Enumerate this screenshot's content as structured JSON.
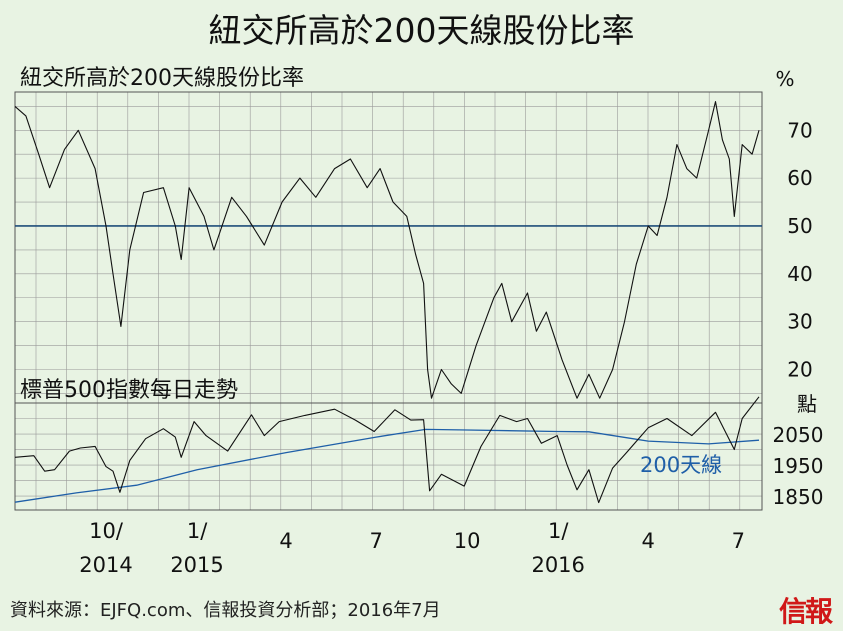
{
  "title": "紐交所高於200天線股份比率",
  "footer": "資料來源：EJFQ.com、信報投資分析部；2016年7月",
  "logo": "信報",
  "chart_data": [
    {
      "type": "line",
      "title": "紐交所高於200天線股份比率",
      "unit": "%",
      "yticks": [
        20,
        30,
        40,
        50,
        60,
        70
      ],
      "ylim": [
        13,
        78
      ],
      "reference_line": 50,
      "x_range": [
        "2014-07-01",
        "2016-07-25"
      ],
      "points": [
        [
          "2014-07-01",
          75
        ],
        [
          "2014-07-12",
          73
        ],
        [
          "2014-07-25",
          65
        ],
        [
          "2014-08-05",
          58
        ],
        [
          "2014-08-20",
          66
        ],
        [
          "2014-09-03",
          70
        ],
        [
          "2014-09-20",
          62
        ],
        [
          "2014-10-01",
          50
        ],
        [
          "2014-10-08",
          40
        ],
        [
          "2014-10-16",
          29
        ],
        [
          "2014-10-25",
          45
        ],
        [
          "2014-11-08",
          57
        ],
        [
          "2014-11-28",
          58
        ],
        [
          "2014-12-10",
          50
        ],
        [
          "2014-12-16",
          43
        ],
        [
          "2014-12-24",
          58
        ],
        [
          "2015-01-08",
          52
        ],
        [
          "2015-01-18",
          45
        ],
        [
          "2015-02-05",
          56
        ],
        [
          "2015-02-20",
          52
        ],
        [
          "2015-03-10",
          46
        ],
        [
          "2015-03-28",
          55
        ],
        [
          "2015-04-15",
          60
        ],
        [
          "2015-05-01",
          56
        ],
        [
          "2015-05-20",
          62
        ],
        [
          "2015-06-05",
          64
        ],
        [
          "2015-06-22",
          58
        ],
        [
          "2015-07-05",
          62
        ],
        [
          "2015-07-18",
          55
        ],
        [
          "2015-08-01",
          52
        ],
        [
          "2015-08-10",
          44
        ],
        [
          "2015-08-18",
          38
        ],
        [
          "2015-08-22",
          20
        ],
        [
          "2015-08-26",
          14
        ],
        [
          "2015-09-05",
          20
        ],
        [
          "2015-09-15",
          17
        ],
        [
          "2015-09-25",
          15
        ],
        [
          "2015-10-10",
          25
        ],
        [
          "2015-10-28",
          35
        ],
        [
          "2015-11-05",
          38
        ],
        [
          "2015-11-15",
          30
        ],
        [
          "2015-12-01",
          36
        ],
        [
          "2015-12-10",
          28
        ],
        [
          "2015-12-20",
          32
        ],
        [
          "2016-01-05",
          22
        ],
        [
          "2016-01-20",
          14
        ],
        [
          "2016-02-01",
          19
        ],
        [
          "2016-02-12",
          14
        ],
        [
          "2016-02-25",
          20
        ],
        [
          "2016-03-08",
          30
        ],
        [
          "2016-03-20",
          42
        ],
        [
          "2016-04-01",
          50
        ],
        [
          "2016-04-10",
          48
        ],
        [
          "2016-04-20",
          56
        ],
        [
          "2016-04-30",
          67
        ],
        [
          "2016-05-10",
          62
        ],
        [
          "2016-05-20",
          60
        ],
        [
          "2016-06-01",
          70
        ],
        [
          "2016-06-08",
          76
        ],
        [
          "2016-06-15",
          68
        ],
        [
          "2016-06-22",
          64
        ],
        [
          "2016-06-27",
          52
        ],
        [
          "2016-07-05",
          67
        ],
        [
          "2016-07-15",
          65
        ],
        [
          "2016-07-22",
          70
        ]
      ]
    },
    {
      "type": "line",
      "title": "標普500指數每日走勢",
      "unit": "點",
      "yticks": [
        1850,
        1950,
        2050
      ],
      "ylim": [
        1805,
        2150
      ],
      "x_range": [
        "2014-07-01",
        "2016-07-25"
      ],
      "xticks": [
        "10/",
        "2014",
        "1/",
        "2015",
        "4",
        "7",
        "10",
        "1/",
        "2016",
        "4",
        "7"
      ],
      "series": [
        {
          "name": "",
          "points": [
            [
              "2014-07-01",
              1975
            ],
            [
              "2014-07-20",
              1980
            ],
            [
              "2014-07-31",
              1930
            ],
            [
              "2014-08-10",
              1935
            ],
            [
              "2014-08-25",
              1995
            ],
            [
              "2014-09-05",
              2005
            ],
            [
              "2014-09-20",
              2010
            ],
            [
              "2014-10-01",
              1945
            ],
            [
              "2014-10-08",
              1930
            ],
            [
              "2014-10-15",
              1862
            ],
            [
              "2014-10-25",
              1965
            ],
            [
              "2014-11-10",
              2035
            ],
            [
              "2014-11-28",
              2067
            ],
            [
              "2014-12-10",
              2040
            ],
            [
              "2014-12-16",
              1975
            ],
            [
              "2014-12-29",
              2090
            ],
            [
              "2015-01-10",
              2045
            ],
            [
              "2015-02-01",
              1995
            ],
            [
              "2015-02-25",
              2112
            ],
            [
              "2015-03-10",
              2045
            ],
            [
              "2015-03-25",
              2090
            ],
            [
              "2015-04-20",
              2110
            ],
            [
              "2015-05-20",
              2130
            ],
            [
              "2015-06-10",
              2095
            ],
            [
              "2015-06-29",
              2058
            ],
            [
              "2015-07-20",
              2128
            ],
            [
              "2015-08-05",
              2095
            ],
            [
              "2015-08-18",
              2096
            ],
            [
              "2015-08-24",
              1867
            ],
            [
              "2015-09-05",
              1920
            ],
            [
              "2015-09-28",
              1882
            ],
            [
              "2015-10-15",
              2010
            ],
            [
              "2015-11-03",
              2110
            ],
            [
              "2015-11-20",
              2090
            ],
            [
              "2015-12-01",
              2100
            ],
            [
              "2015-12-15",
              2020
            ],
            [
              "2015-12-31",
              2045
            ],
            [
              "2016-01-10",
              1950
            ],
            [
              "2016-01-20",
              1870
            ],
            [
              "2016-02-01",
              1935
            ],
            [
              "2016-02-11",
              1829
            ],
            [
              "2016-02-25",
              1940
            ],
            [
              "2016-03-10",
              1990
            ],
            [
              "2016-04-01",
              2070
            ],
            [
              "2016-04-20",
              2100
            ],
            [
              "2016-05-15",
              2045
            ],
            [
              "2016-06-08",
              2120
            ],
            [
              "2016-06-27",
              2000
            ],
            [
              "2016-07-05",
              2100
            ],
            [
              "2016-07-22",
              2170
            ]
          ]
        },
        {
          "name": "200天線",
          "points": [
            [
              "2014-07-01",
              1830
            ],
            [
              "2014-09-01",
              1860
            ],
            [
              "2014-11-01",
              1885
            ],
            [
              "2015-01-01",
              1935
            ],
            [
              "2015-04-01",
              1990
            ],
            [
              "2015-07-01",
              2040
            ],
            [
              "2015-08-20",
              2065
            ],
            [
              "2015-10-01",
              2063
            ],
            [
              "2015-12-31",
              2058
            ],
            [
              "2016-02-01",
              2057
            ],
            [
              "2016-04-01",
              2027
            ],
            [
              "2016-06-01",
              2018
            ],
            [
              "2016-07-22",
              2030
            ]
          ]
        }
      ]
    }
  ]
}
